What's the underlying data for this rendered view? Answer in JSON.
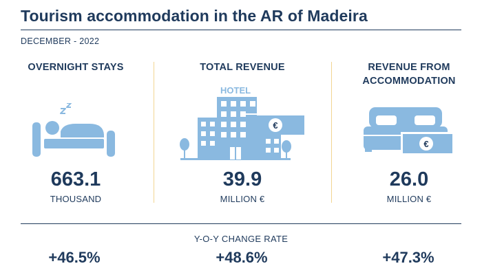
{
  "title": "Tourism accommodation in the AR of Madeira",
  "subtitle": "DECEMBER - 2022",
  "colors": {
    "navy": "#1f3a5c",
    "icon_blue": "#8ab9e0",
    "divider_gold": "#f2d591"
  },
  "metrics": [
    {
      "label": "OVERNIGHT STAYS",
      "icon": "sleeping-person-icon",
      "value": "663.1",
      "unit": "THOUSAND",
      "yoy": "+46.5%"
    },
    {
      "label": "TOTAL REVENUE",
      "icon": "hotel-icon",
      "icon_text": "HOTEL",
      "value": "39.9",
      "unit": "MILLION €",
      "yoy": "+48.6%"
    },
    {
      "label_line1": "REVENUE FROM",
      "label_line2": "ACCOMMODATION",
      "icon": "bed-euro-icon",
      "value": "26.0",
      "unit": "MILLION €",
      "yoy": "+47.3%"
    }
  ],
  "euro_symbol": "€",
  "yoy_label": "Y-O-Y CHANGE RATE"
}
